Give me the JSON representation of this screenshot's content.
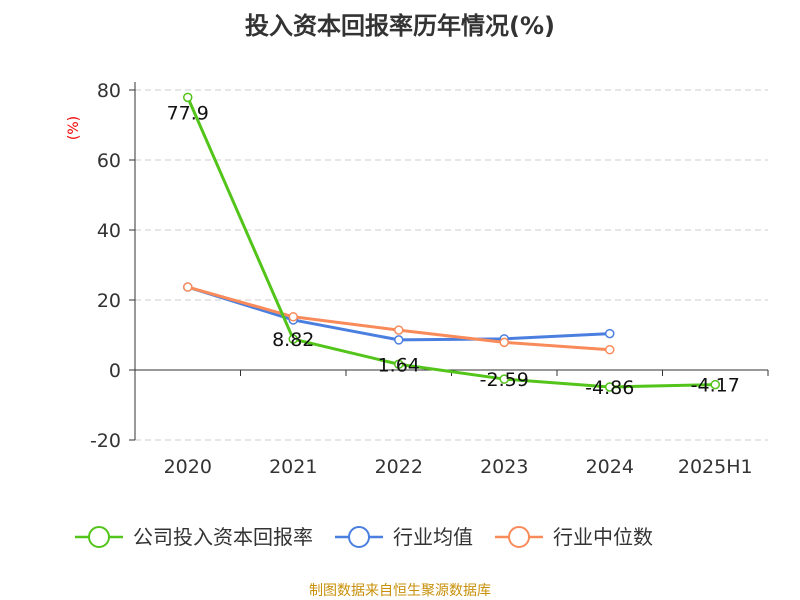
{
  "chart_data": {
    "type": "line",
    "title": "投入资本回报率历年情况(%)",
    "ylabel": "(%)",
    "xlabel": "",
    "categories": [
      "2020",
      "2021",
      "2022",
      "2023",
      "2024",
      "2025H1"
    ],
    "ylim": [
      -20,
      80
    ],
    "yticks": [
      -20,
      0,
      20,
      40,
      60,
      80
    ],
    "grid": true,
    "legend_position": "bottom",
    "series": [
      {
        "name": "公司投入资本回报率",
        "color": "#52c41a",
        "values": [
          77.9,
          8.82,
          1.64,
          -2.59,
          -4.86,
          -4.17
        ],
        "labels": [
          "77.9",
          "8.82",
          "1.64",
          "-2.59",
          "-4.86",
          "-4.17"
        ]
      },
      {
        "name": "行业均值",
        "color": "#4a7fe0",
        "values": [
          23.7,
          14.3,
          8.6,
          8.9,
          10.4,
          null
        ]
      },
      {
        "name": "行业中位数",
        "color": "#f98b5b",
        "values": [
          23.7,
          15.2,
          11.4,
          7.9,
          5.8,
          null
        ]
      }
    ]
  },
  "source": "制图数据来自恒生聚源数据库"
}
